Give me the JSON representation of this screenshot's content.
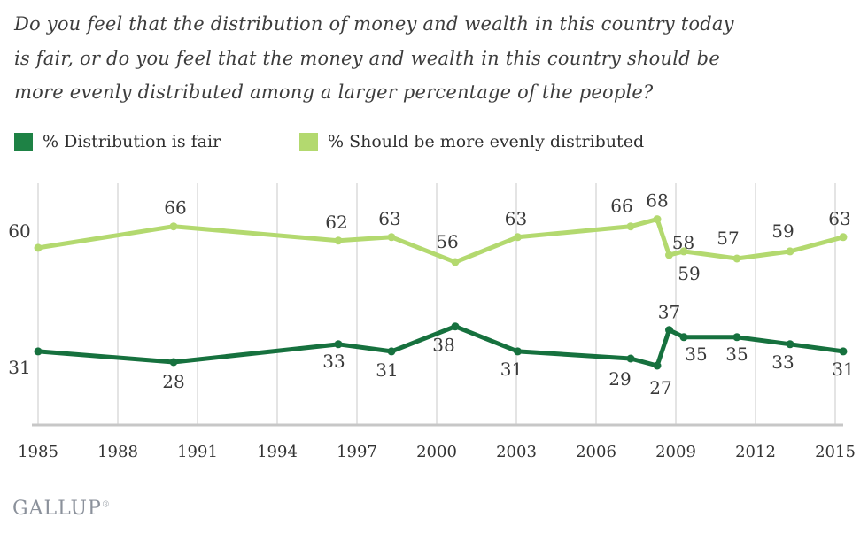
{
  "title": {
    "line1": "Do you feel that the distribution of money and wealth in this country today",
    "line2": "is fair, or do you feel that the money and wealth in this country should be",
    "line3": "more evenly distributed among a larger percentage of the people?"
  },
  "legend": {
    "items": [
      {
        "label": "% Distribution is fair",
        "color": "#1e8245"
      },
      {
        "label": "% Should be more evenly distributed",
        "color": "#b3d96f"
      }
    ]
  },
  "chart_data": {
    "type": "line",
    "title": "Perceived fairness of money and wealth distribution in the U.S.",
    "x_ticks": [
      1985,
      1988,
      1991,
      1994,
      1997,
      2000,
      2003,
      2006,
      2009,
      2012,
      2015
    ],
    "xlim": [
      1984.5,
      2015.8
    ],
    "ylim": [
      10,
      80
    ],
    "grid": "vertical-only",
    "legend_position": "top",
    "data_labels": true,
    "series": [
      {
        "name": "% Should be more evenly distributed",
        "color": "#b3d96f",
        "points": [
          {
            "x": 1985,
            "y": 60,
            "dx": -21,
            "dy": -12
          },
          {
            "x": 1990.1,
            "y": 66,
            "dx": 2,
            "dy": -14
          },
          {
            "x": 1996.3,
            "y": 62,
            "dx": -2,
            "dy": -14
          },
          {
            "x": 1998.3,
            "y": 63,
            "dx": -2,
            "dy": -14
          },
          {
            "x": 2000.7,
            "y": 56,
            "dx": -9,
            "dy": -16
          },
          {
            "x": 2003.05,
            "y": 63,
            "dx": -2,
            "dy": -14
          },
          {
            "x": 2007.3,
            "y": 66,
            "dx": -10,
            "dy": -16
          },
          {
            "x": 2008.3,
            "y": 68,
            "dx": 0,
            "dy": -14
          },
          {
            "x": 2008.75,
            "y": 58,
            "dx": 16,
            "dy": -7
          },
          {
            "x": 2009.3,
            "y": 59,
            "dx": 6,
            "dy": 32
          },
          {
            "x": 2011.3,
            "y": 57,
            "dx": -10,
            "dy": -16
          },
          {
            "x": 2013.3,
            "y": 59,
            "dx": -8,
            "dy": -16
          },
          {
            "x": 2015.3,
            "y": 63,
            "dx": -4,
            "dy": -14
          }
        ]
      },
      {
        "name": "% Distribution is fair",
        "color": "#16713e",
        "points": [
          {
            "x": 1985,
            "y": 31,
            "dx": -21,
            "dy": 25
          },
          {
            "x": 1990.1,
            "y": 28,
            "dx": 0,
            "dy": 29
          },
          {
            "x": 1996.3,
            "y": 33,
            "dx": -5,
            "dy": 26
          },
          {
            "x": 1998.3,
            "y": 31,
            "dx": -5,
            "dy": 28
          },
          {
            "x": 2000.7,
            "y": 38,
            "dx": -13,
            "dy": 28
          },
          {
            "x": 2003.05,
            "y": 31,
            "dx": -7,
            "dy": 27
          },
          {
            "x": 2007.3,
            "y": 29,
            "dx": -12,
            "dy": 30
          },
          {
            "x": 2008.3,
            "y": 27,
            "dx": 4,
            "dy": 32
          },
          {
            "x": 2008.75,
            "y": 37,
            "dx": 0,
            "dy": -13
          },
          {
            "x": 2009.3,
            "y": 35,
            "dx": 14,
            "dy": 26
          },
          {
            "x": 2011.3,
            "y": 35,
            "dx": 0,
            "dy": 26
          },
          {
            "x": 2013.3,
            "y": 33,
            "dx": -8,
            "dy": 27
          },
          {
            "x": 2015.3,
            "y": 31,
            "dx": 0,
            "dy": 27
          }
        ]
      }
    ]
  },
  "colors": {
    "gridline": "#d3d3d3",
    "baseline": "#c7c7c7",
    "value_label": "#3a3a3a",
    "tick_label": "#333333"
  },
  "logo": {
    "text": "GALLUP",
    "mark": "®"
  }
}
